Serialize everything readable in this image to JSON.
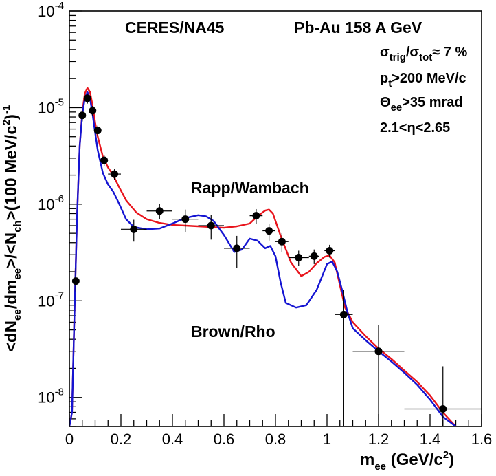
{
  "chart_data": {
    "type": "line",
    "title": "",
    "xlabel": "m_ee (GeV/c^2)",
    "ylabel": "<dN_ee/dm_ee>/<N_ch>(100 MeV/c^2)^-1",
    "xlim": [
      0,
      1.6
    ],
    "ylim": [
      5e-09,
      0.0001
    ],
    "yscale": "log",
    "x_ticks": [
      "0",
      "0.2",
      "0.4",
      "0.6",
      "0.8",
      "1",
      "1.2",
      "1.4",
      "1.6"
    ],
    "y_ticks": [
      "10^-8",
      "10^-7",
      "10^-6",
      "10^-5",
      "10^-4"
    ],
    "annotations": {
      "experiment": "CERES/NA45",
      "system": "Pb-Au 158 A GeV",
      "centrality": "σtrig/σtot≈ 7 %",
      "pt_cut": "pt>200 MeV/c",
      "angle_cut": "Θee>35 mrad",
      "eta_cut": "2.1<η<2.65",
      "label_rapp": "Rapp/Wambach",
      "label_brown": "Brown/Rho"
    },
    "points": {
      "x": [
        0.025,
        0.05,
        0.07,
        0.09,
        0.11,
        0.135,
        0.175,
        0.25,
        0.35,
        0.45,
        0.55,
        0.65,
        0.725,
        0.775,
        0.825,
        0.89,
        0.95,
        1.01,
        1.065,
        1.2,
        1.45
      ],
      "y": [
        1.6e-07,
        8.3e-06,
        1.25e-05,
        9.3e-06,
        5.8e-06,
        2.85e-06,
        2.05e-06,
        5.5e-07,
        8.5e-07,
        7e-07,
        6e-07,
        3.5e-07,
        7.6e-07,
        5.3e-07,
        4.1e-07,
        2.8e-07,
        2.9e-07,
        3.3e-07,
        7.2e-08,
        3e-08,
        7.6e-09
      ],
      "xerr": [
        0.005,
        0.01,
        0.01,
        0.01,
        0.01,
        0.015,
        0.025,
        0.05,
        0.05,
        0.05,
        0.05,
        0.05,
        0.025,
        0.025,
        0.025,
        0.04,
        0.02,
        0.02,
        0.035,
        0.1,
        0.15
      ],
      "ylo": [
        1.25e-07,
        7.2e-06,
        1.1e-05,
        8.2e-06,
        5.1e-06,
        2.5e-06,
        1.8e-06,
        4.1e-07,
        7e-07,
        5.1e-07,
        4.3e-07,
        2.2e-07,
        6.3e-07,
        4.2e-07,
        3.2e-07,
        2.3e-07,
        2.4e-07,
        2.8e-07,
        5e-09,
        5e-09,
        5e-09
      ],
      "yhi": [
        2.2e-07,
        9.5e-06,
        1.4e-05,
        1.04e-05,
        6.5e-06,
        3.2e-06,
        2.3e-06,
        6.9e-07,
        1e-06,
        8.8e-07,
        7.8e-07,
        4.7e-07,
        8.9e-07,
        6.3e-07,
        5e-07,
        3.3e-07,
        3.4e-07,
        3.8e-07,
        1.3e-07,
        5.6e-08,
        2.1e-08
      ]
    },
    "series": [
      {
        "name": "Rapp/Wambach",
        "color": "#e8141c",
        "x": [
          0.0,
          0.01,
          0.02,
          0.03,
          0.04,
          0.05,
          0.06,
          0.07,
          0.08,
          0.09,
          0.1,
          0.11,
          0.13,
          0.15,
          0.17,
          0.19,
          0.22,
          0.26,
          0.3,
          0.35,
          0.4,
          0.45,
          0.5,
          0.55,
          0.6,
          0.65,
          0.7,
          0.73,
          0.76,
          0.775,
          0.79,
          0.82,
          0.86,
          0.9,
          0.93,
          0.96,
          0.99,
          1.01,
          1.03,
          1.05,
          1.07,
          1.1,
          1.15,
          1.2,
          1.25,
          1.3,
          1.35,
          1.4,
          1.45,
          1.5
        ],
        "y": [
          5e-09,
          7e-09,
          8e-08,
          8e-07,
          4e-06,
          9e-06,
          1.4e-05,
          1.6e-05,
          1.45e-05,
          1.05e-05,
          7e-06,
          5e-06,
          3.1e-06,
          2.4e-06,
          2e-06,
          1.55e-06,
          1.1e-06,
          8.2e-07,
          7e-07,
          6.4e-07,
          6.1e-07,
          6e-07,
          5.9e-07,
          5.8e-07,
          5.7e-07,
          5.9e-07,
          6.3e-07,
          7.5e-07,
          8.6e-07,
          8.8e-07,
          8e-07,
          4.7e-07,
          2.5e-07,
          1.8e-07,
          2e-07,
          2.45e-07,
          2.85e-07,
          2.95e-07,
          2.5e-07,
          1.45e-07,
          8.5e-08,
          6e-08,
          4.3e-08,
          3.2e-08,
          2.5e-08,
          1.9e-08,
          1.45e-08,
          1.05e-08,
          7e-09,
          5e-09
        ]
      },
      {
        "name": "Brown/Rho",
        "color": "#1414d2",
        "x": [
          0.0,
          0.01,
          0.02,
          0.03,
          0.04,
          0.05,
          0.06,
          0.07,
          0.08,
          0.09,
          0.1,
          0.11,
          0.13,
          0.15,
          0.17,
          0.19,
          0.22,
          0.25,
          0.3,
          0.35,
          0.4,
          0.45,
          0.5,
          0.53,
          0.56,
          0.6,
          0.64,
          0.67,
          0.7,
          0.73,
          0.76,
          0.78,
          0.8,
          0.82,
          0.84,
          0.88,
          0.92,
          0.96,
          1.0,
          1.02,
          1.04,
          1.06,
          1.08,
          1.1,
          1.15,
          1.2,
          1.25,
          1.3,
          1.35,
          1.4,
          1.45,
          1.5
        ],
        "y": [
          5e-09,
          7e-09,
          8e-08,
          8e-07,
          4e-06,
          8.5e-06,
          1.25e-05,
          1.45e-05,
          1.25e-05,
          8.5e-06,
          5.5e-06,
          3.6e-06,
          2.1e-06,
          1.6e-06,
          1.35e-06,
          1.05e-06,
          7e-07,
          5.8e-07,
          5.5e-07,
          5.6e-07,
          6.3e-07,
          7.2e-07,
          7.7e-07,
          7.5e-07,
          6.7e-07,
          4.8e-07,
          3.2e-07,
          3.4e-07,
          4.4e-07,
          4.2e-07,
          3.5e-07,
          3.7e-07,
          2.9e-07,
          1.55e-07,
          9.5e-08,
          8.5e-08,
          9e-08,
          1.3e-07,
          2.4e-07,
          2.55e-07,
          2e-07,
          1.25e-07,
          7.5e-08,
          5.2e-08,
          3.9e-08,
          3e-08,
          2.35e-08,
          1.8e-08,
          1.35e-08,
          9.5e-09,
          6.3e-09,
          5e-09
        ]
      }
    ]
  }
}
